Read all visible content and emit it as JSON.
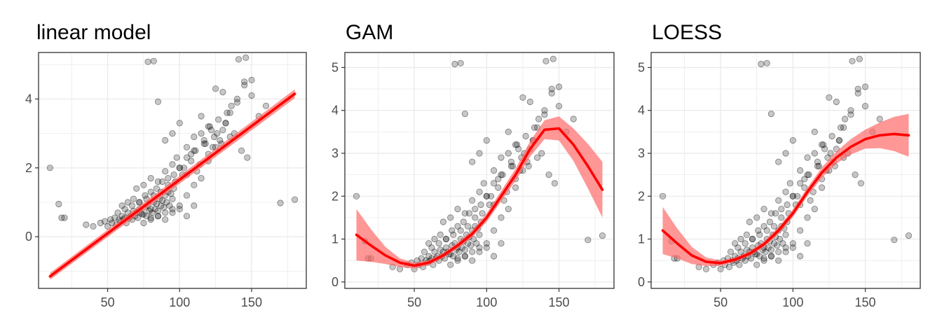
{
  "colors": {
    "points": "#000000",
    "fit_line": "#ff0000",
    "ribbon": "#ff6b6b",
    "gridline": "#ebebeb",
    "panel_border": "#333333",
    "tick_text": "#4d4d4d"
  },
  "chart_data": [
    {
      "type": "scatter",
      "title": "linear model",
      "xlabel": "",
      "ylabel": "",
      "xlim": [
        2,
        188
      ],
      "ylim": [
        -1.5,
        5.35
      ],
      "x_ticks": [
        50,
        100,
        150
      ],
      "y_ticks": [
        0,
        2,
        4
      ],
      "grid": true,
      "fit": {
        "method": "linear",
        "x": [
          10,
          180
        ],
        "y": [
          -1.15,
          4.15
        ],
        "ci_halfwidth": [
          0.1,
          0.13
        ]
      }
    },
    {
      "type": "scatter",
      "title": "GAM",
      "xlabel": "",
      "ylabel": "",
      "xlim": [
        2,
        188
      ],
      "ylim": [
        -0.15,
        5.35
      ],
      "x_ticks": [
        50,
        100,
        150
      ],
      "y_ticks": [
        0,
        1,
        2,
        3,
        4,
        5
      ],
      "grid": true,
      "fit": {
        "method": "gam",
        "x": [
          10,
          20,
          30,
          40,
          50,
          60,
          70,
          80,
          90,
          100,
          110,
          120,
          130,
          140,
          150,
          160,
          170,
          180
        ],
        "y": [
          1.1,
          0.85,
          0.62,
          0.45,
          0.38,
          0.45,
          0.62,
          0.85,
          1.12,
          1.5,
          2.0,
          2.5,
          3.1,
          3.55,
          3.58,
          3.2,
          2.7,
          2.15
        ],
        "ci_halfwidth": [
          0.6,
          0.38,
          0.2,
          0.1,
          0.07,
          0.06,
          0.06,
          0.07,
          0.08,
          0.1,
          0.12,
          0.14,
          0.18,
          0.22,
          0.28,
          0.38,
          0.52,
          0.65
        ]
      }
    },
    {
      "type": "scatter",
      "title": "LOESS",
      "xlabel": "",
      "ylabel": "",
      "xlim": [
        2,
        188
      ],
      "ylim": [
        -0.15,
        5.35
      ],
      "x_ticks": [
        50,
        100,
        150
      ],
      "y_ticks": [
        0,
        1,
        2,
        3,
        4,
        5
      ],
      "grid": true,
      "fit": {
        "method": "loess",
        "x": [
          10,
          20,
          30,
          40,
          50,
          60,
          70,
          80,
          90,
          100,
          110,
          120,
          130,
          140,
          150,
          160,
          170,
          180
        ],
        "y": [
          1.2,
          0.9,
          0.62,
          0.47,
          0.44,
          0.52,
          0.66,
          0.88,
          1.2,
          1.6,
          2.1,
          2.55,
          2.9,
          3.15,
          3.33,
          3.42,
          3.45,
          3.42
        ],
        "ci_halfwidth": [
          0.55,
          0.35,
          0.2,
          0.1,
          0.06,
          0.05,
          0.06,
          0.07,
          0.08,
          0.09,
          0.1,
          0.12,
          0.14,
          0.18,
          0.22,
          0.3,
          0.4,
          0.5
        ]
      }
    }
  ],
  "observations": {
    "x": [
      10,
      16,
      18,
      20,
      78,
      82,
      85,
      170,
      180,
      141,
      146,
      150,
      90,
      95,
      100,
      105,
      110,
      115,
      120,
      125,
      130,
      135,
      140,
      145,
      155,
      160,
      120,
      125,
      98,
      103,
      108,
      112,
      117,
      122,
      128,
      132,
      138,
      143,
      147,
      35,
      40,
      45,
      48,
      52,
      55,
      58,
      60,
      62,
      64,
      66,
      68,
      70,
      72,
      74,
      76,
      78,
      80,
      82,
      84,
      86,
      88,
      90,
      92,
      94,
      96,
      50,
      53,
      56,
      59,
      61,
      63,
      65,
      67,
      69,
      71,
      73,
      75,
      77,
      79,
      81,
      83,
      85,
      87,
      89,
      91,
      93,
      95,
      57,
      62,
      67,
      72,
      77,
      82,
      87,
      92,
      97,
      102,
      70,
      75,
      80,
      85,
      90,
      95,
      100,
      105,
      110,
      75,
      80,
      85,
      90,
      95,
      100,
      105,
      110,
      115,
      115,
      118,
      121,
      124,
      127,
      130,
      133,
      136,
      105,
      108,
      111,
      114,
      117,
      120,
      123,
      126,
      129,
      132,
      135,
      60,
      64,
      68,
      72,
      76,
      80,
      84,
      88,
      92,
      96,
      100,
      80,
      85,
      90,
      95,
      100,
      105,
      110,
      140,
      150,
      145
    ],
    "y": [
      2.0,
      0.95,
      0.55,
      0.55,
      5.08,
      5.1,
      3.92,
      0.98,
      1.08,
      5.15,
      5.2,
      4.55,
      2.8,
      3.0,
      3.3,
      2.6,
      2.9,
      3.5,
      3.2,
      4.3,
      4.2,
      3.6,
      4.0,
      4.5,
      3.5,
      3.8,
      2.2,
      2.6,
      2.3,
      2.0,
      2.4,
      1.9,
      2.7,
      3.1,
      2.8,
      3.3,
      3.0,
      2.5,
      2.3,
      0.35,
      0.3,
      0.4,
      0.45,
      0.5,
      0.55,
      0.5,
      0.6,
      0.55,
      0.7,
      0.6,
      0.75,
      0.7,
      0.8,
      0.65,
      0.85,
      0.9,
      0.8,
      1.0,
      0.95,
      1.1,
      1.05,
      1.2,
      1.3,
      1.25,
      1.4,
      0.3,
      0.4,
      0.35,
      0.45,
      0.5,
      0.4,
      0.55,
      0.5,
      0.6,
      0.55,
      0.7,
      0.65,
      0.6,
      0.75,
      0.7,
      0.8,
      0.75,
      0.9,
      0.85,
      1.0,
      0.9,
      1.1,
      0.7,
      0.8,
      0.9,
      1.0,
      1.1,
      1.2,
      1.3,
      1.5,
      1.6,
      1.8,
      1.4,
      1.5,
      1.7,
      1.6,
      1.9,
      2.1,
      2.0,
      2.3,
      2.5,
      0.4,
      0.5,
      0.6,
      0.7,
      0.8,
      0.9,
      1.2,
      1.5,
      1.7,
      3.0,
      2.7,
      3.2,
      2.9,
      3.4,
      3.1,
      3.6,
      3.8,
      1.8,
      2.2,
      2.5,
      2.1,
      2.8,
      2.4,
      2.6,
      3.0,
      2.7,
      3.3,
      2.9,
      0.9,
      1.0,
      1.1,
      1.0,
      1.2,
      1.3,
      1.4,
      1.6,
      1.7,
      1.8,
      2.0,
      0.55,
      0.6,
      0.5,
      0.7,
      0.8,
      0.6,
      0.9,
      3.9,
      4.1,
      4.4
    ]
  }
}
